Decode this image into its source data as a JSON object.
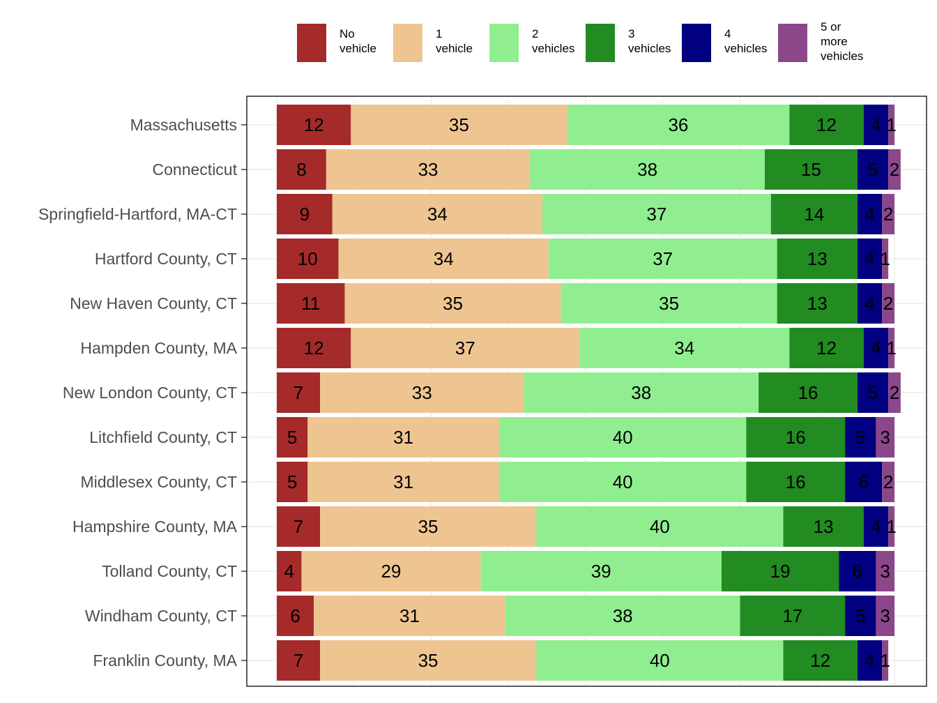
{
  "chart_data": {
    "type": "bar",
    "orientation": "horizontal",
    "stacked": true,
    "normalized_percent": true,
    "title": "",
    "xlabel": "",
    "ylabel": "",
    "xlim": [
      0,
      100
    ],
    "grid": true,
    "legend_position": "top",
    "categories": [
      "Massachusetts",
      "Connecticut",
      "Springfield-Hartford, MA-CT",
      "Hartford County, CT",
      "New Haven County, CT",
      "Hampden County, MA",
      "New London County, CT",
      "Litchfield County, CT",
      "Middlesex County, CT",
      "Hampshire County, MA",
      "Tolland County, CT",
      "Windham County, CT",
      "Franklin County, MA"
    ],
    "series": [
      {
        "name": "No\nvehicle",
        "color": "#A52A2A",
        "values": [
          12,
          8,
          9,
          10,
          11,
          12,
          7,
          5,
          5,
          7,
          4,
          6,
          7
        ]
      },
      {
        "name": "1\nvehicle",
        "color": "#EEC591",
        "values": [
          35,
          33,
          34,
          34,
          35,
          37,
          33,
          31,
          31,
          35,
          29,
          31,
          35
        ]
      },
      {
        "name": "2\nvehicles",
        "color": "#90EE90",
        "values": [
          36,
          38,
          37,
          37,
          35,
          34,
          38,
          40,
          40,
          40,
          39,
          38,
          40
        ]
      },
      {
        "name": "3\nvehicles",
        "color": "#228B22",
        "values": [
          12,
          15,
          14,
          13,
          13,
          12,
          16,
          16,
          16,
          13,
          19,
          17,
          12
        ]
      },
      {
        "name": "4\nvehicles",
        "color": "#000080",
        "values": [
          4,
          5,
          4,
          4,
          4,
          4,
          5,
          5,
          6,
          4,
          6,
          5,
          4
        ]
      },
      {
        "name": "5 or\nmore\nvehicles",
        "color": "#8B4789",
        "values": [
          1,
          2,
          2,
          1,
          2,
          1,
          2,
          3,
          2,
          1,
          3,
          3,
          1
        ]
      }
    ]
  }
}
